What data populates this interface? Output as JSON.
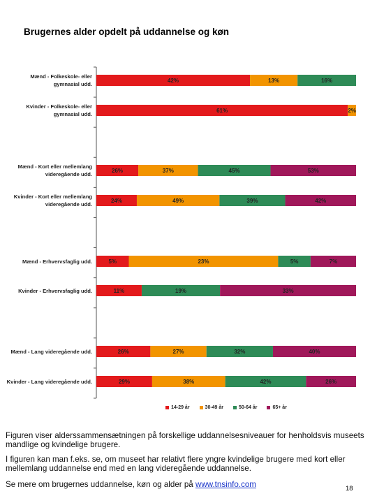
{
  "page": {
    "title": "Brugernes alder opdelt på uddannelse og køn",
    "note1": "Figuren viser alderssammensætningen på forskellige uddannelsesniveauer for henholdsvis museets mandlige og kvindelige brugere.",
    "note2": "I figuren kan man f.eks. se, om museet har relativt flere yngre kvindelige brugere med kort eller mellemlang uddannelse end med en lang videregående uddannelse.",
    "note3_prefix": "Se mere om brugernes uddannelse, køn og alder på ",
    "note3_link": "www.tnsinfo.com",
    "page_number": "18"
  },
  "chart_data": {
    "type": "bar",
    "orientation": "horizontal",
    "stacked": "percent",
    "title": "Brugernes alder opdelt på uddannelse og køn",
    "categories": [
      "Mænd - Folkeskole- eller gymnasial udd.",
      "Kvinder - Folkeskole- eller gymnasial udd.",
      "Mænd - Kort eller mellemlang videregående udd.",
      "Kvinder - Kort eller mellemlang videregående udd.",
      "Mænd - Erhvervsfaglig udd.",
      "Kvinder - Erhvervsfaglig udd.",
      "Mænd - Lang videregående udd.",
      "Kvinder - Lang videregående udd."
    ],
    "series": [
      {
        "name": "14-29 år",
        "color": "#e31a1c",
        "values": [
          42,
          61,
          26,
          24,
          5,
          11,
          26,
          29
        ]
      },
      {
        "name": "30-49 år",
        "color": "#f29400",
        "values": [
          13,
          2,
          37,
          49,
          23,
          null,
          27,
          38
        ]
      },
      {
        "name": "50-64 år",
        "color": "#2e8b57",
        "values": [
          16,
          null,
          45,
          39,
          5,
          19,
          32,
          42
        ]
      },
      {
        "name": "65+ år",
        "color": "#a0185a",
        "values": [
          null,
          null,
          53,
          42,
          7,
          33,
          40,
          26
        ]
      }
    ],
    "data_labels": [
      [
        "42%",
        "13%",
        "16%",
        ""
      ],
      [
        "61%",
        "2%",
        "",
        ""
      ],
      [
        "26%",
        "37%",
        "45%",
        "53%"
      ],
      [
        "24%",
        "49%",
        "39%",
        "42%"
      ],
      [
        "5%",
        "23%",
        "5%",
        "7%"
      ],
      [
        "11%",
        "",
        "19%",
        "33%"
      ],
      [
        "26%",
        "27%",
        "32%",
        "40%"
      ],
      [
        "29%",
        "38%",
        "42%",
        "26%"
      ]
    ],
    "legend": "bottom",
    "grid": false
  }
}
